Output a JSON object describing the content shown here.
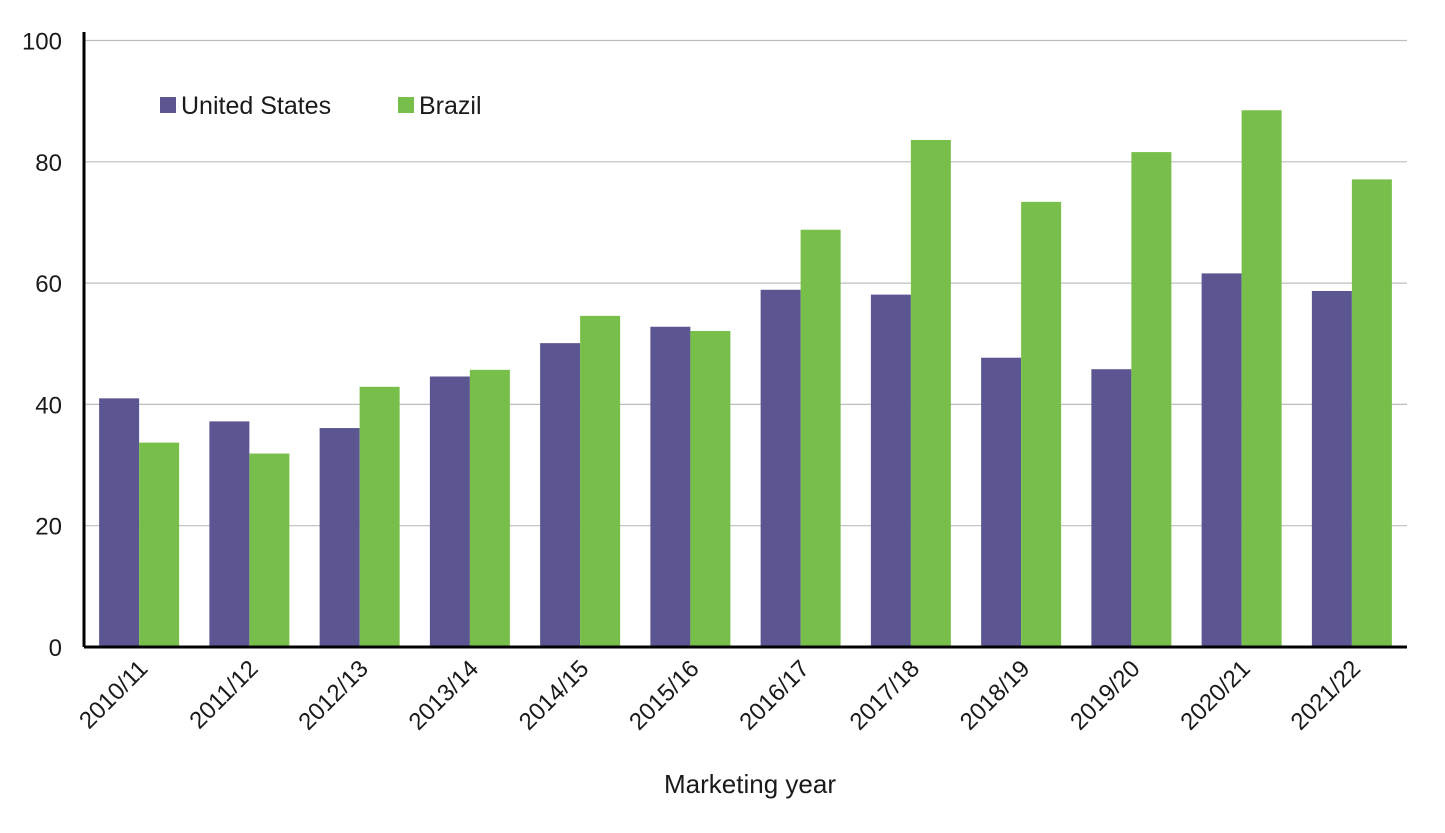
{
  "chart_data": {
    "type": "bar",
    "title": "",
    "xlabel": "Marketing year",
    "ylabel": "",
    "ylim": [
      0,
      100
    ],
    "yticks": [
      0,
      20,
      40,
      60,
      80,
      100
    ],
    "grid": true,
    "legend_position": "top-left",
    "categories": [
      "2010/11",
      "2011/12",
      "2012/13",
      "2013/14",
      "2014/15",
      "2015/16",
      "2016/17",
      "2017/18",
      "2018/19",
      "2019/20",
      "2020/21",
      "2021/22"
    ],
    "series": [
      {
        "name": "United States",
        "color": "#5b5592",
        "values": [
          41,
          37.2,
          36.1,
          44.6,
          50.1,
          52.8,
          58.9,
          58.1,
          47.7,
          45.8,
          61.6,
          58.7
        ]
      },
      {
        "name": "Brazil",
        "color": "#77bf4a",
        "values": [
          33.7,
          31.9,
          42.9,
          45.7,
          54.6,
          52.1,
          68.8,
          83.6,
          73.4,
          81.6,
          88.5,
          77.1
        ]
      }
    ]
  }
}
